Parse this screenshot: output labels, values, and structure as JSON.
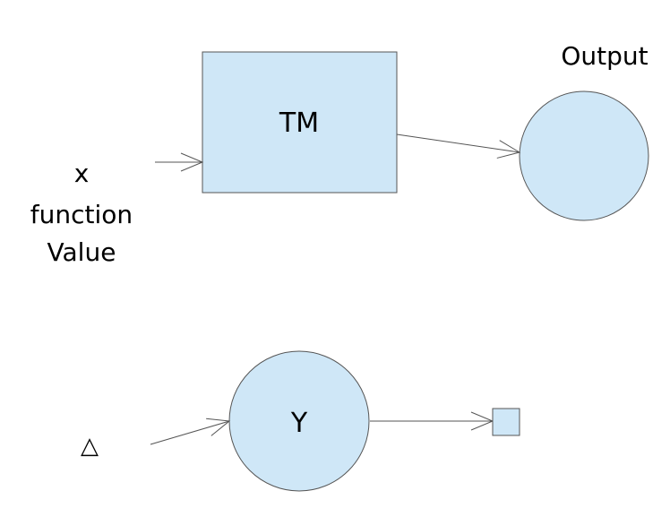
{
  "diagram": {
    "tm_box": {
      "label": "TM"
    },
    "output_node": {
      "label": "Output"
    },
    "input_label": {
      "line1": "x",
      "line2": "function",
      "line3": "Value"
    },
    "y_node": {
      "label": "Y"
    },
    "delta_symbol": {
      "label": "△"
    },
    "colors": {
      "node_fill": "#cfe7f7",
      "stroke": "#555555",
      "text": "#000000"
    }
  }
}
